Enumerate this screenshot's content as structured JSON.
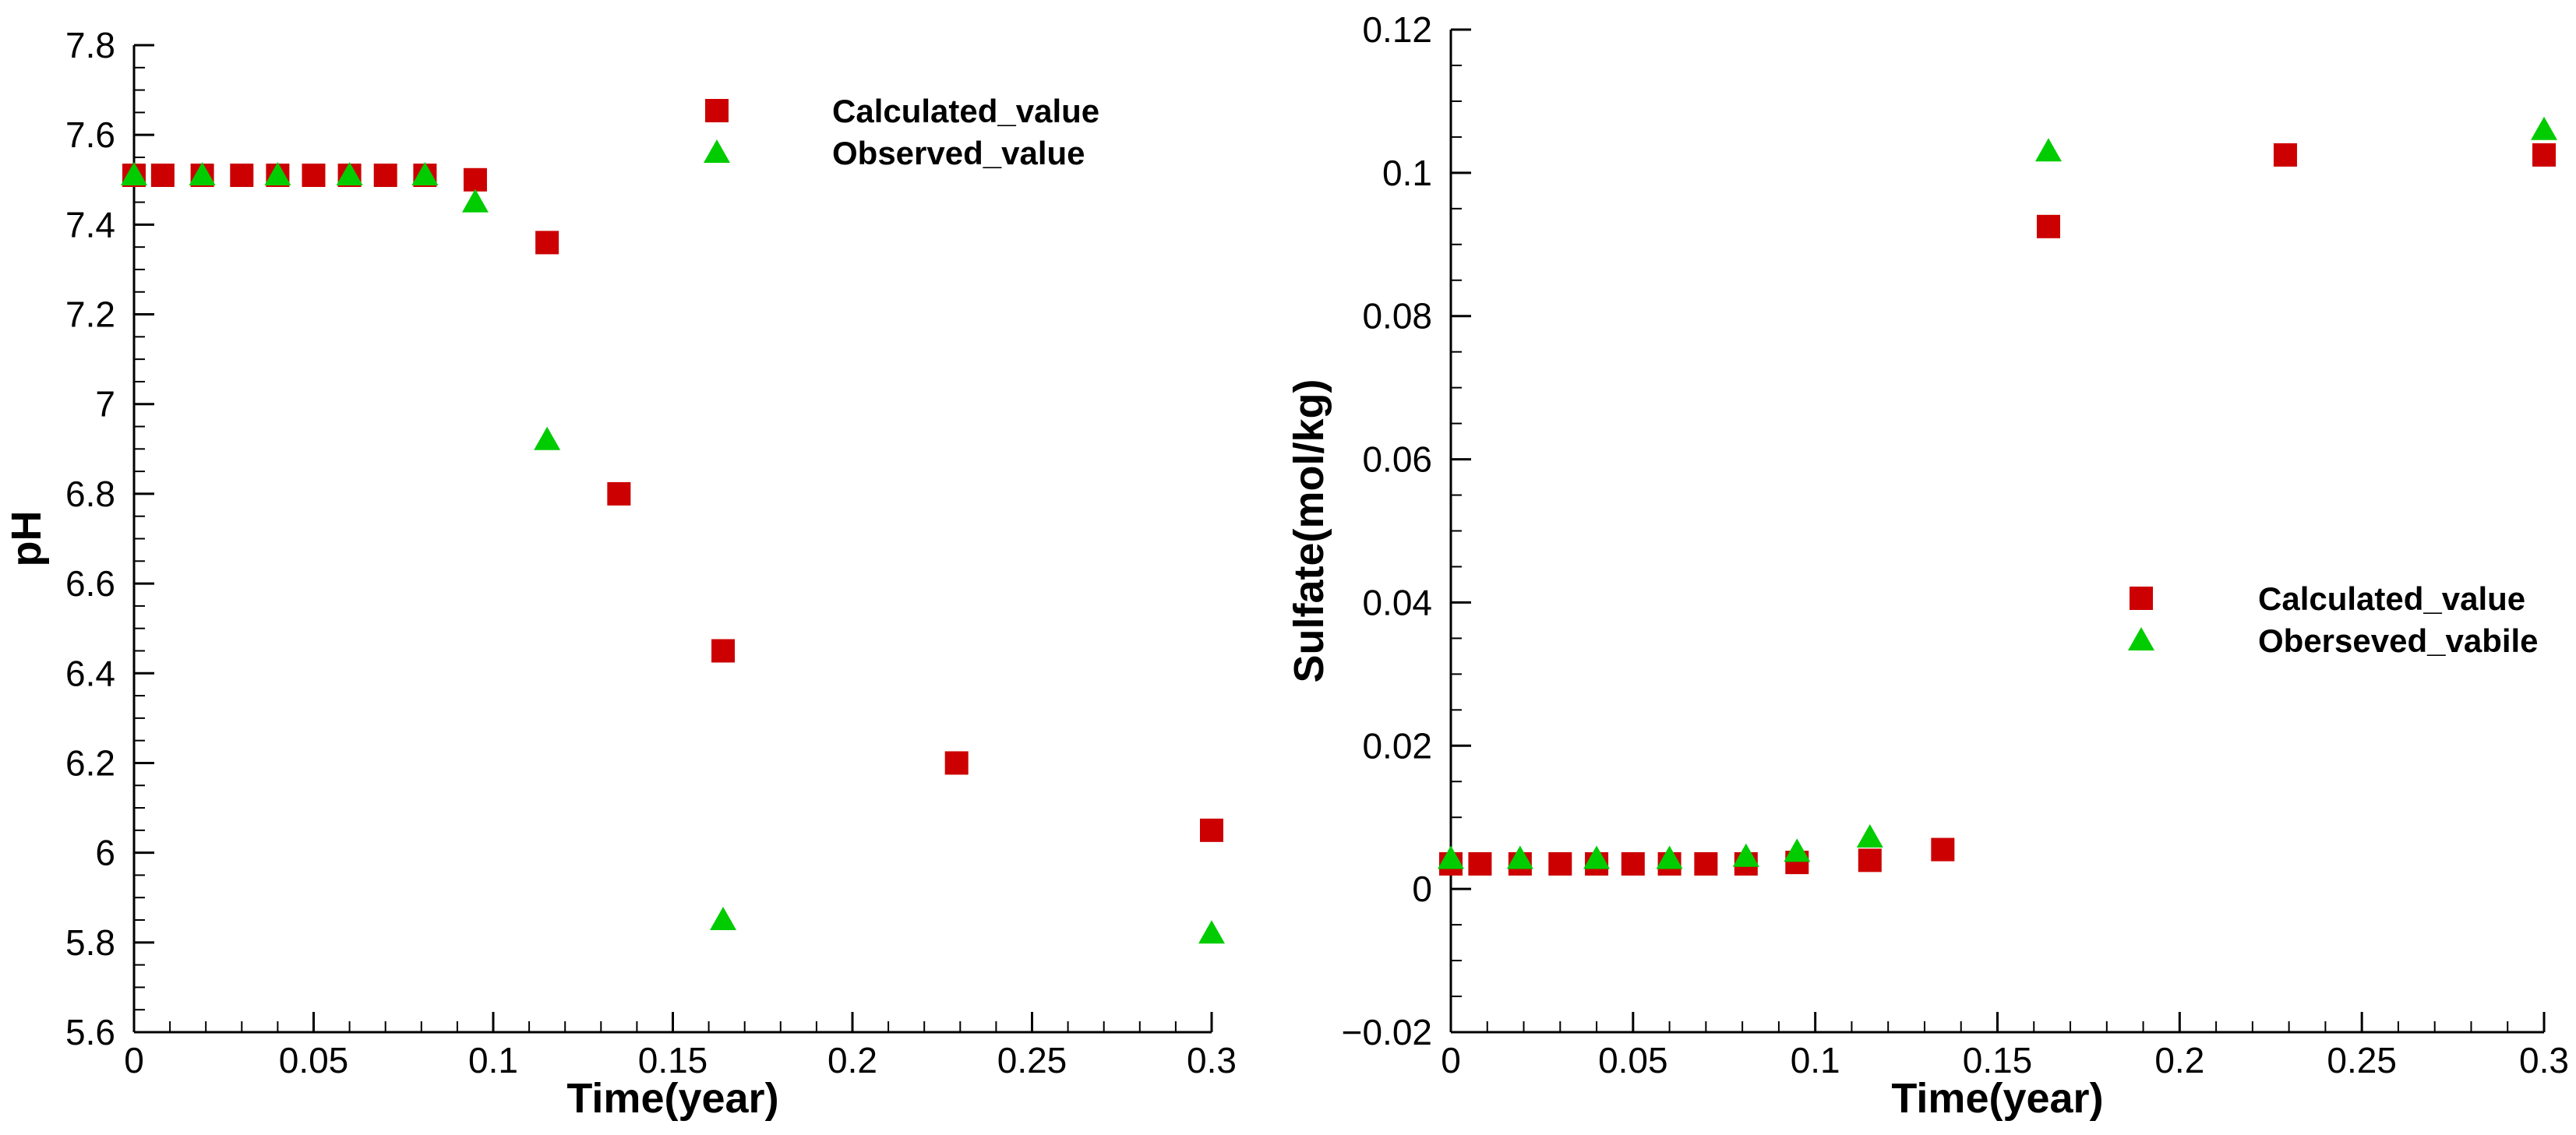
{
  "chart_data": [
    {
      "type": "scatter",
      "xlabel": "Time(year)",
      "ylabel": "pH",
      "xlim": [
        0,
        0.3
      ],
      "ylim": [
        5.6,
        7.8
      ],
      "x_ticks": [
        "0",
        "0.05",
        "0.1",
        "0.15",
        "0.2",
        "0.25",
        "0.3"
      ],
      "y_ticks": [
        "5.6",
        "5.8",
        "6",
        "6.2",
        "6.4",
        "6.6",
        "6.8",
        "7",
        "7.2",
        "7.4",
        "7.6",
        "7.8"
      ],
      "legend_position": "top-right",
      "series": [
        {
          "name": "Calculated_value",
          "marker": "square",
          "color": "#cc0000",
          "x": [
            0,
            0.008,
            0.019,
            0.03,
            0.04,
            0.05,
            0.06,
            0.07,
            0.081,
            0.095,
            0.115,
            0.135,
            0.164,
            0.229,
            0.3
          ],
          "y": [
            7.51,
            7.51,
            7.51,
            7.51,
            7.51,
            7.51,
            7.51,
            7.51,
            7.51,
            7.5,
            7.36,
            6.8,
            6.45,
            6.2,
            6.05
          ]
        },
        {
          "name": "Observed_value",
          "marker": "triangle",
          "color": "#00cc00",
          "x": [
            0,
            0.019,
            0.04,
            0.06,
            0.081,
            0.095,
            0.115,
            0.164,
            0.3
          ],
          "y": [
            7.51,
            7.51,
            7.51,
            7.51,
            7.51,
            7.45,
            6.92,
            5.85,
            5.82
          ]
        }
      ]
    },
    {
      "type": "scatter",
      "xlabel": "Time(year)",
      "ylabel": "Sulfate(mol/kg)",
      "xlim": [
        0,
        0.3
      ],
      "ylim": [
        -0.02,
        0.12
      ],
      "x_ticks": [
        "0",
        "0.05",
        "0.1",
        "0.15",
        "0.2",
        "0.25",
        "0.3"
      ],
      "y_ticks": [
        "−0.02",
        "0",
        "0.02",
        "0.04",
        "0.06",
        "0.08",
        "0.1",
        "0.12"
      ],
      "legend_position": "center-right",
      "series": [
        {
          "name": "Calculated_value",
          "marker": "square",
          "color": "#cc0000",
          "x": [
            0,
            0.008,
            0.019,
            0.03,
            0.04,
            0.05,
            0.06,
            0.07,
            0.081,
            0.095,
            0.115,
            0.135,
            0.164,
            0.229,
            0.3
          ],
          "y": [
            0.0035,
            0.0035,
            0.0035,
            0.0035,
            0.0035,
            0.0035,
            0.0035,
            0.0035,
            0.0035,
            0.0037,
            0.004,
            0.0055,
            0.0925,
            0.1025,
            0.1025
          ]
        },
        {
          "name": "Oberseved_vabile",
          "marker": "triangle",
          "color": "#00cc00",
          "x": [
            0,
            0.019,
            0.04,
            0.06,
            0.081,
            0.095,
            0.115,
            0.164,
            0.3
          ],
          "y": [
            0.0042,
            0.0042,
            0.0042,
            0.0042,
            0.0045,
            0.0052,
            0.0072,
            0.103,
            0.106
          ]
        }
      ]
    }
  ]
}
